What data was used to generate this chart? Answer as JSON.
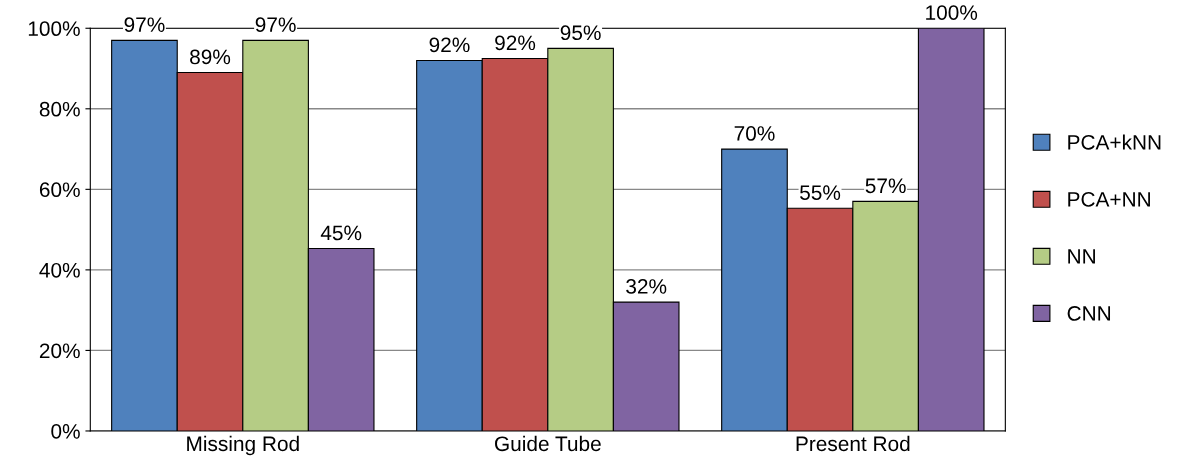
{
  "chart_data": {
    "type": "bar",
    "categories": [
      "Missing Rod",
      "Guide Tube",
      "Present Rod"
    ],
    "series": [
      {
        "name": "PCA+kNN",
        "color": "#4f81bd",
        "values": [
          97,
          92,
          70
        ],
        "value_labels": [
          "97%",
          "92%",
          "70%"
        ]
      },
      {
        "name": "PCA+NN",
        "color": "#c0504d",
        "values": [
          89,
          92.5,
          55.3
        ],
        "value_labels": [
          "89%",
          "92%",
          "55%"
        ]
      },
      {
        "name": "NN",
        "color": "#b5cc85",
        "values": [
          97,
          95,
          57
        ],
        "value_labels": [
          "97%",
          "95%",
          "57%"
        ]
      },
      {
        "name": "CNN",
        "color": "#8064a2",
        "values": [
          45.3,
          32,
          100
        ],
        "value_labels": [
          "45%",
          "32%",
          "100%"
        ]
      }
    ],
    "ylim": [
      0,
      100
    ],
    "yticks": [
      {
        "value": 0,
        "label": "0%"
      },
      {
        "value": 20,
        "label": "20%"
      },
      {
        "value": 40,
        "label": "40%"
      },
      {
        "value": 60,
        "label": "60%"
      },
      {
        "value": 80,
        "label": "80%"
      },
      {
        "value": 100,
        "label": "100%"
      }
    ],
    "grid": "y",
    "legend": "right"
  }
}
